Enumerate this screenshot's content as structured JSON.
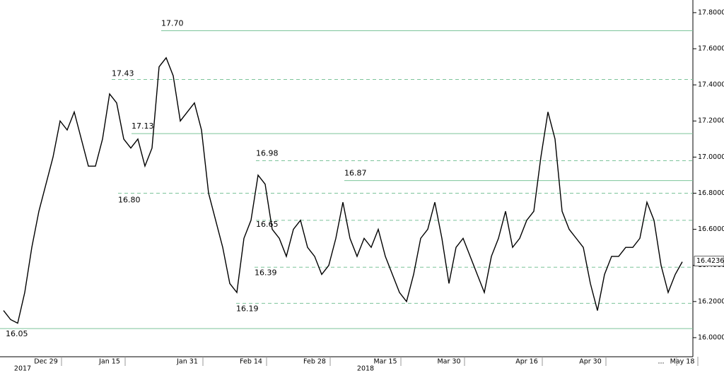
{
  "chart_data": {
    "type": "line",
    "color": "#000000",
    "reference_color": "#7cc49a",
    "categories": [
      null,
      null,
      null,
      null,
      null,
      null,
      "Dec 29",
      null,
      null,
      null,
      null,
      null,
      null,
      null,
      null,
      "Jan 15",
      null,
      null,
      null,
      null,
      null,
      null,
      null,
      null,
      null,
      null,
      "Jan 31",
      null,
      null,
      null,
      null,
      null,
      null,
      null,
      null,
      "Feb 14",
      null,
      null,
      null,
      null,
      null,
      null,
      null,
      null,
      "Feb 28",
      null,
      null,
      null,
      null,
      null,
      null,
      null,
      null,
      null,
      "Mar 15",
      null,
      null,
      null,
      null,
      null,
      null,
      null,
      null,
      "Mar 30",
      null,
      null,
      null,
      null,
      null,
      null,
      null,
      null,
      null,
      null,
      "Apr 16",
      null,
      null,
      null,
      null,
      null,
      null,
      null,
      null,
      "Apr 30",
      null,
      null,
      null,
      null,
      null,
      null,
      null,
      null,
      null,
      "...",
      null,
      null,
      "May 18"
    ],
    "values": [
      16.15,
      16.1,
      16.08,
      16.25,
      16.5,
      16.7,
      16.85,
      17.0,
      17.2,
      17.15,
      17.25,
      17.1,
      16.95,
      16.95,
      17.1,
      17.35,
      17.3,
      17.1,
      17.05,
      17.1,
      16.95,
      17.05,
      17.5,
      17.55,
      17.45,
      17.2,
      17.25,
      17.3,
      17.15,
      16.8,
      16.65,
      16.5,
      16.3,
      16.25,
      16.55,
      16.65,
      16.9,
      16.85,
      16.6,
      16.55,
      16.45,
      16.6,
      16.65,
      16.5,
      16.45,
      16.35,
      16.4,
      16.55,
      16.75,
      16.55,
      16.45,
      16.55,
      16.5,
      16.6,
      16.45,
      16.35,
      16.25,
      16.2,
      16.35,
      16.55,
      16.6,
      16.75,
      16.55,
      16.3,
      16.5,
      16.55,
      16.45,
      16.35,
      16.25,
      16.45,
      16.55,
      16.7,
      16.5,
      16.55,
      16.65,
      16.7,
      17.0,
      17.25,
      17.1,
      16.7,
      16.6,
      16.55,
      16.5,
      16.3,
      16.15,
      16.35,
      16.45,
      16.45,
      16.5,
      16.5,
      16.55,
      16.75,
      16.65,
      16.4,
      16.25,
      16.35,
      16.42
    ],
    "year_labels": [
      "2017",
      "2018"
    ],
    "ylim": [
      15.945,
      17.87
    ],
    "yticks": [
      {
        "value": 16.0,
        "label": "16.0000"
      },
      {
        "value": 16.2,
        "label": "16.2000"
      },
      {
        "value": 16.4,
        "label": "16.4000"
      },
      {
        "value": 16.6,
        "label": "16.6000"
      },
      {
        "value": 16.8,
        "label": "16.8000"
      },
      {
        "value": 17.0,
        "label": "17.0000"
      },
      {
        "value": 17.2,
        "label": "17.2000"
      },
      {
        "value": 17.4,
        "label": "17.4000"
      },
      {
        "value": 17.6,
        "label": "17.6000"
      },
      {
        "value": 17.8,
        "label": "17.8000"
      }
    ],
    "reference_lines": [
      {
        "value": 17.7,
        "label": "17.70",
        "style": "solid"
      },
      {
        "value": 17.43,
        "label": "17.43",
        "style": "dashed"
      },
      {
        "value": 17.13,
        "label": "17.13",
        "style": "solid"
      },
      {
        "value": 16.98,
        "label": "16.98",
        "style": "dashed"
      },
      {
        "value": 16.87,
        "label": "16.87",
        "style": "solid"
      },
      {
        "value": 16.8,
        "label": "16.80",
        "style": "dashed"
      },
      {
        "value": 16.65,
        "label": "16.65",
        "style": "dashed"
      },
      {
        "value": 16.39,
        "label": "16.39",
        "style": "dashed"
      },
      {
        "value": 16.19,
        "label": "16.19",
        "style": "dashed"
      },
      {
        "value": 16.05,
        "label": "16.05",
        "style": "solid"
      }
    ],
    "last_price": 16.4236
  }
}
